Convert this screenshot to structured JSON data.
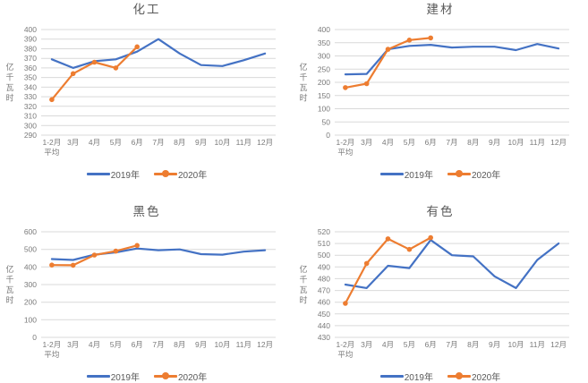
{
  "styles": {
    "background": "#ffffff",
    "series_2019_color": "#4472C4",
    "series_2020_color": "#ED7D31",
    "gridline_color": "#D9D9D9",
    "tick_label_color": "#7a7a7a",
    "title_color": "#595959",
    "legend_text_color": "#595959"
  },
  "chart_data": [
    {
      "type": "line",
      "title": "化工",
      "ylabel": "亿千瓦时",
      "ylim": [
        290,
        400
      ],
      "ystep": 10,
      "grid": true,
      "legend_position": "bottom",
      "categories": [
        "1-2月\n平均",
        "3月",
        "4月",
        "5月",
        "6月",
        "7月",
        "8月",
        "9月",
        "10月",
        "11月",
        "12月"
      ],
      "series": [
        {
          "name": "2019年",
          "color": "#4472C4",
          "marker": false,
          "values": [
            369,
            360,
            367,
            369,
            377,
            390,
            375,
            363,
            362,
            368,
            375
          ]
        },
        {
          "name": "2020年",
          "color": "#ED7D31",
          "marker": true,
          "values": [
            327,
            354,
            366,
            360,
            382,
            null,
            null,
            null,
            null,
            null,
            null
          ]
        }
      ]
    },
    {
      "type": "line",
      "title": "建材",
      "ylabel": "亿千瓦时",
      "ylim": [
        0,
        400
      ],
      "ystep": 50,
      "grid": true,
      "legend_position": "bottom",
      "categories": [
        "1-2月\n平均",
        "3月",
        "4月",
        "5月",
        "6月",
        "7月",
        "8月",
        "9月",
        "10月",
        "11月",
        "12月"
      ],
      "series": [
        {
          "name": "2019年",
          "color": "#4472C4",
          "marker": false,
          "values": [
            230,
            232,
            325,
            338,
            342,
            332,
            335,
            335,
            322,
            345,
            328
          ]
        },
        {
          "name": "2020年",
          "color": "#ED7D31",
          "marker": true,
          "values": [
            180,
            195,
            325,
            360,
            368,
            null,
            null,
            null,
            null,
            null,
            null
          ]
        }
      ]
    },
    {
      "type": "line",
      "title": "黑色",
      "ylabel": "亿千瓦时",
      "ylim": [
        0,
        600
      ],
      "ystep": 100,
      "grid": true,
      "legend_position": "bottom",
      "categories": [
        "1-2月\n平均",
        "3月",
        "4月",
        "5月",
        "6月",
        "7月",
        "8月",
        "9月",
        "10月",
        "11月",
        "12月"
      ],
      "series": [
        {
          "name": "2019年",
          "color": "#4472C4",
          "marker": false,
          "values": [
            445,
            440,
            470,
            483,
            505,
            495,
            500,
            473,
            470,
            487,
            495
          ]
        },
        {
          "name": "2020年",
          "color": "#ED7D31",
          "marker": true,
          "values": [
            411,
            410,
            468,
            490,
            522,
            null,
            null,
            null,
            null,
            null,
            null
          ]
        }
      ]
    },
    {
      "type": "line",
      "title": "有色",
      "ylabel": "亿千瓦时",
      "ylim": [
        430,
        520
      ],
      "ystep": 10,
      "grid": true,
      "legend_position": "bottom",
      "categories": [
        "1-2月\n平均",
        "3月",
        "4月",
        "5月",
        "6月",
        "7月",
        "8月",
        "9月",
        "10月",
        "11月",
        "12月"
      ],
      "series": [
        {
          "name": "2019年",
          "color": "#4472C4",
          "marker": false,
          "values": [
            475,
            472,
            491,
            489,
            513,
            500,
            499,
            482,
            472,
            496,
            510
          ]
        },
        {
          "name": "2020年",
          "color": "#ED7D31",
          "marker": true,
          "values": [
            459,
            493,
            514,
            505,
            515,
            null,
            null,
            null,
            null,
            null,
            null
          ]
        }
      ]
    }
  ]
}
